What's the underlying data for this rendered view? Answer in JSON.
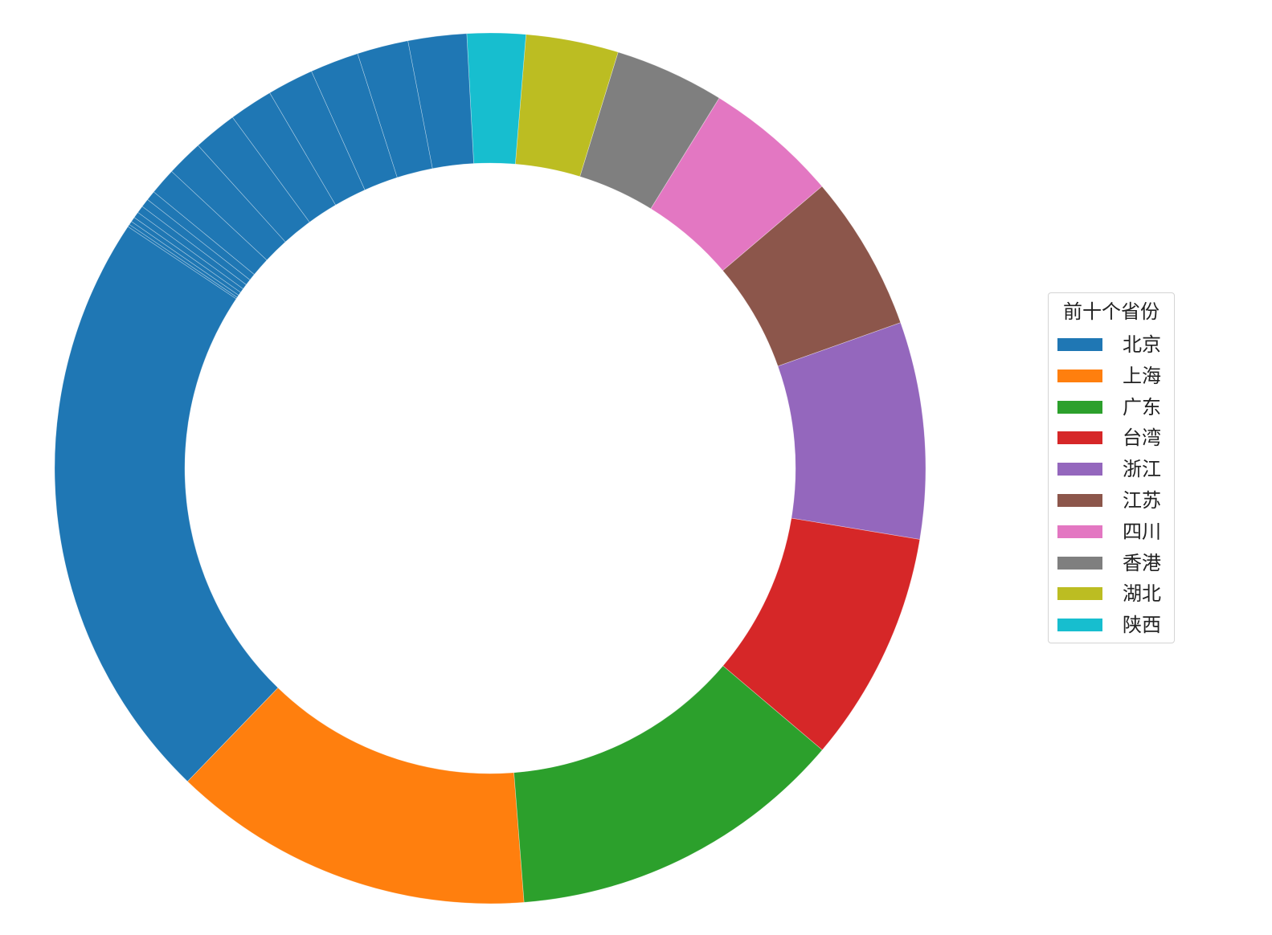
{
  "chart_data": {
    "type": "pie",
    "donut": true,
    "start_angle_deg": -9.4,
    "direction": "counterclockwise",
    "title": "",
    "legend": {
      "title": "前十个省份",
      "placement": "center-right"
    },
    "slices": [
      {
        "label": "浙江",
        "value": 8.9,
        "color": "#9467bd"
      },
      {
        "label": "江苏",
        "value": 6.4,
        "color": "#8c564b"
      },
      {
        "label": "四川",
        "value": 5.5,
        "color": "#e377c2"
      },
      {
        "label": "香港",
        "value": 4.5,
        "color": "#7f7f7f"
      },
      {
        "label": "湖北",
        "value": 3.8,
        "color": "#bcbd22"
      },
      {
        "label": "陕西",
        "value": 2.4,
        "color": "#17becf"
      },
      {
        "label": "",
        "value": 2.4,
        "color": "#1f77b4"
      },
      {
        "label": "",
        "value": 2.1,
        "color": "#1f77b4"
      },
      {
        "label": "",
        "value": 2.0,
        "color": "#1f77b4"
      },
      {
        "label": "",
        "value": 1.9,
        "color": "#1f77b4"
      },
      {
        "label": "",
        "value": 1.8,
        "color": "#1f77b4"
      },
      {
        "label": "",
        "value": 1.8,
        "color": "#1f77b4"
      },
      {
        "label": "",
        "value": 1.5,
        "color": "#1f77b4"
      },
      {
        "label": "",
        "value": 1.1,
        "color": "#1f77b4"
      },
      {
        "label": "",
        "value": 0.4,
        "color": "#1f77b4"
      },
      {
        "label": "",
        "value": 0.35,
        "color": "#1f77b4"
      },
      {
        "label": "",
        "value": 0.3,
        "color": "#1f77b4"
      },
      {
        "label": "",
        "value": 0.25,
        "color": "#1f77b4"
      },
      {
        "label": "",
        "value": 0.2,
        "color": "#1f77b4"
      },
      {
        "label": "",
        "value": 0.15,
        "color": "#1f77b4"
      },
      {
        "label": "",
        "value": 0.1,
        "color": "#1f77b4"
      },
      {
        "label": "北京",
        "value": 24.5,
        "color": "#1f77b4"
      },
      {
        "label": "上海",
        "value": 14.9,
        "color": "#ff7f0e"
      },
      {
        "label": "广东",
        "value": 13.9,
        "color": "#2ca02c"
      },
      {
        "label": "台湾",
        "value": 9.5,
        "color": "#d62728"
      }
    ],
    "legend_entries": [
      {
        "label": "北京",
        "color": "#1f77b4"
      },
      {
        "label": "上海",
        "color": "#ff7f0e"
      },
      {
        "label": "广东",
        "color": "#2ca02c"
      },
      {
        "label": "台湾",
        "color": "#d62728"
      },
      {
        "label": "浙江",
        "color": "#9467bd"
      },
      {
        "label": "江苏",
        "color": "#8c564b"
      },
      {
        "label": "四川",
        "color": "#e377c2"
      },
      {
        "label": "香港",
        "color": "#7f7f7f"
      },
      {
        "label": "湖北",
        "color": "#bcbd22"
      },
      {
        "label": "陕西",
        "color": "#17becf"
      }
    ]
  }
}
